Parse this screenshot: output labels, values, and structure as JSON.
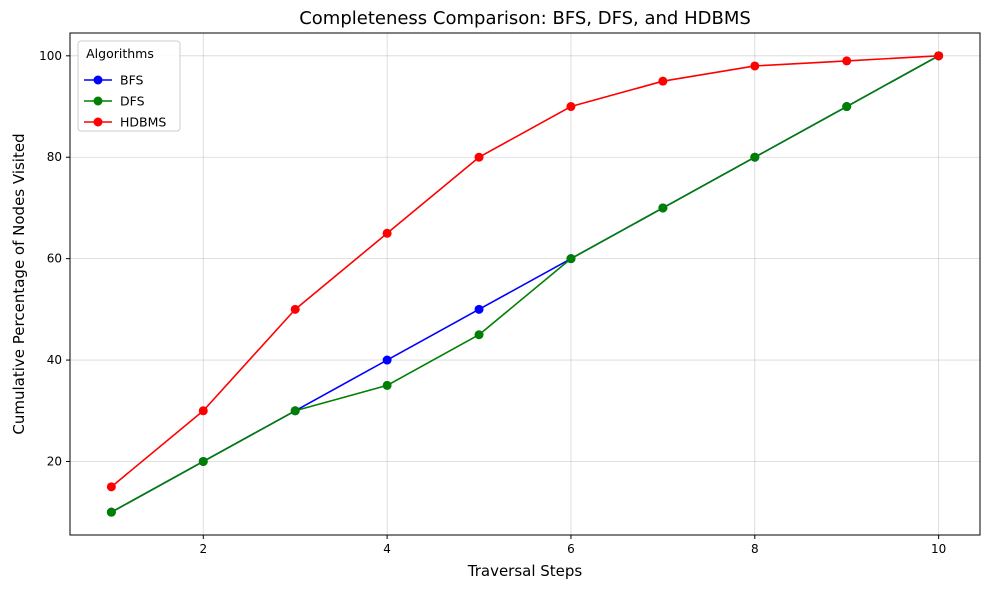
{
  "chart_data": {
    "type": "line",
    "title": "Completeness Comparison: BFS, DFS, and HDBMS",
    "xlabel": "Traversal Steps",
    "ylabel": "Cumulative Percentage of Nodes Visited",
    "x": [
      1,
      2,
      3,
      4,
      5,
      6,
      7,
      8,
      9,
      10
    ],
    "xlim": [
      0.55,
      10.45
    ],
    "ylim": [
      5.5,
      104.5
    ],
    "xticks": [
      2,
      4,
      6,
      8,
      10
    ],
    "yticks": [
      20,
      40,
      60,
      80,
      100
    ],
    "grid": true,
    "legend": {
      "title": "Algorithms",
      "placement": "top-left"
    },
    "series": [
      {
        "name": "BFS",
        "color": "#0000ff",
        "values": [
          10,
          20,
          30,
          40,
          50,
          60,
          70,
          80,
          90,
          100
        ]
      },
      {
        "name": "DFS",
        "color": "#008000",
        "values": [
          10,
          20,
          30,
          35,
          45,
          60,
          70,
          80,
          90,
          100
        ]
      },
      {
        "name": "HDBMS",
        "color": "#ff0000",
        "values": [
          15,
          30,
          50,
          65,
          80,
          90,
          95,
          98,
          99,
          100
        ]
      }
    ]
  }
}
